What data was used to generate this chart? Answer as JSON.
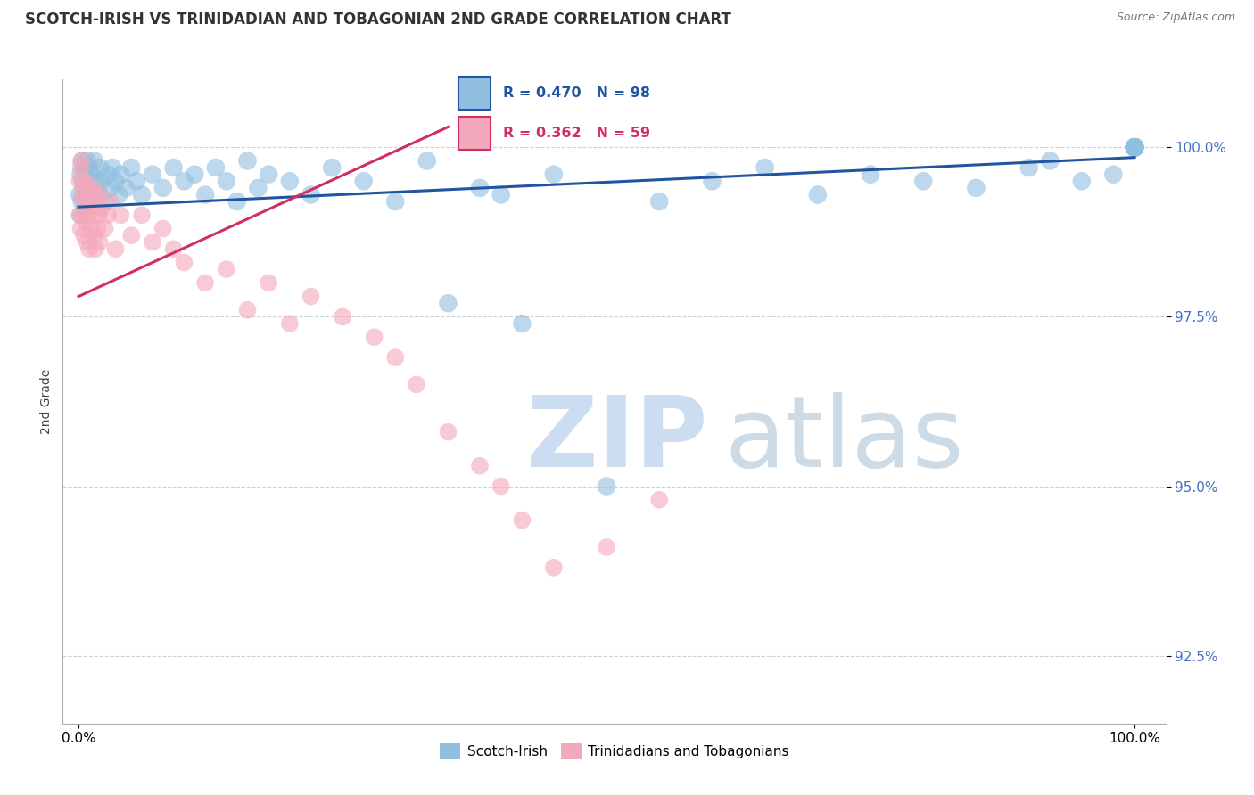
{
  "title": "SCOTCH-IRISH VS TRINIDADIAN AND TOBAGONIAN 2ND GRADE CORRELATION CHART",
  "source": "Source: ZipAtlas.com",
  "ylabel": "2nd Grade",
  "xlim": [
    -1.5,
    103
  ],
  "ylim": [
    91.5,
    101.0
  ],
  "yticks": [
    92.5,
    95.0,
    97.5,
    100.0
  ],
  "xtick_vals": [
    0.0,
    100.0
  ],
  "xtick_labels": [
    "0.0%",
    "100.0%"
  ],
  "blue_R": 0.47,
  "blue_N": 98,
  "pink_R": 0.362,
  "pink_N": 59,
  "blue_color": "#91bfe0",
  "pink_color": "#f4a8bb",
  "blue_line_color": "#2255a0",
  "pink_line_color": "#d03060",
  "background_color": "#ffffff",
  "grid_color": "#d0d0d0",
  "axis_label_color": "#4472c4",
  "title_color": "#333333",
  "source_color": "#777777",
  "watermark_zip_color": "#c5d8ef",
  "watermark_atlas_color": "#b8ccde",
  "legend_border_color": "#aaaaaa",
  "blue_trend_x0": 0,
  "blue_trend_x1": 100,
  "blue_trend_y0": 99.12,
  "blue_trend_y1": 99.85,
  "pink_trend_x0": 0,
  "pink_trend_x1": 35,
  "pink_trend_y0": 97.8,
  "pink_trend_y1": 100.3,
  "blue_scatter_x": [
    0.1,
    0.2,
    0.2,
    0.3,
    0.3,
    0.4,
    0.5,
    0.5,
    0.6,
    0.7,
    0.8,
    0.8,
    0.9,
    1.0,
    1.0,
    1.1,
    1.2,
    1.3,
    1.4,
    1.5,
    1.6,
    1.8,
    2.0,
    2.0,
    2.2,
    2.5,
    2.8,
    3.0,
    3.2,
    3.5,
    3.8,
    4.0,
    4.5,
    5.0,
    5.5,
    6.0,
    7.0,
    8.0,
    9.0,
    10.0,
    11.0,
    12.0,
    13.0,
    14.0,
    15.0,
    16.0,
    17.0,
    18.0,
    20.0,
    22.0,
    24.0,
    27.0,
    30.0,
    33.0,
    35.0,
    38.0,
    40.0,
    42.0,
    45.0,
    50.0,
    55.0,
    60.0,
    65.0,
    70.0,
    75.0,
    80.0,
    85.0,
    90.0,
    92.0,
    95.0,
    98.0,
    100.0,
    100.0,
    100.0,
    100.0,
    100.0,
    100.0,
    100.0,
    100.0,
    100.0,
    100.0,
    100.0,
    100.0,
    100.0,
    100.0,
    100.0,
    100.0,
    100.0,
    100.0,
    100.0,
    100.0,
    100.0,
    100.0,
    100.0,
    100.0,
    100.0,
    100.0,
    100.0
  ],
  "blue_scatter_y": [
    99.3,
    99.6,
    99.0,
    99.8,
    99.2,
    99.5,
    99.4,
    99.7,
    99.1,
    99.6,
    99.3,
    99.8,
    99.2,
    99.7,
    99.4,
    99.5,
    99.3,
    99.6,
    99.2,
    99.8,
    99.4,
    99.5,
    99.3,
    99.7,
    99.5,
    99.2,
    99.6,
    99.4,
    99.7,
    99.5,
    99.3,
    99.6,
    99.4,
    99.7,
    99.5,
    99.3,
    99.6,
    99.4,
    99.7,
    99.5,
    99.6,
    99.3,
    99.7,
    99.5,
    99.2,
    99.8,
    99.4,
    99.6,
    99.5,
    99.3,
    99.7,
    99.5,
    99.2,
    99.8,
    97.7,
    99.4,
    99.3,
    97.4,
    99.6,
    95.0,
    99.2,
    99.5,
    99.7,
    99.3,
    99.6,
    99.5,
    99.4,
    99.7,
    99.8,
    99.5,
    99.6,
    100.0,
    100.0,
    100.0,
    100.0,
    100.0,
    100.0,
    100.0,
    100.0,
    100.0,
    100.0,
    100.0,
    100.0,
    100.0,
    100.0,
    100.0,
    100.0,
    100.0,
    100.0,
    100.0,
    100.0,
    100.0,
    100.0,
    100.0,
    100.0,
    100.0,
    100.0,
    100.0
  ],
  "pink_scatter_x": [
    0.1,
    0.1,
    0.2,
    0.2,
    0.3,
    0.3,
    0.4,
    0.4,
    0.5,
    0.5,
    0.6,
    0.7,
    0.7,
    0.8,
    0.8,
    0.9,
    1.0,
    1.0,
    1.1,
    1.2,
    1.3,
    1.4,
    1.5,
    1.5,
    1.6,
    1.7,
    1.8,
    1.9,
    2.0,
    2.0,
    2.2,
    2.5,
    2.8,
    3.0,
    3.5,
    4.0,
    5.0,
    6.0,
    7.0,
    8.0,
    9.0,
    10.0,
    12.0,
    14.0,
    16.0,
    18.0,
    20.0,
    22.0,
    25.0,
    28.0,
    30.0,
    32.0,
    35.0,
    38.0,
    40.0,
    42.0,
    45.0,
    50.0,
    55.0
  ],
  "pink_scatter_y": [
    99.5,
    99.0,
    99.7,
    98.8,
    99.3,
    99.8,
    99.0,
    99.5,
    98.7,
    99.2,
    99.5,
    98.9,
    99.4,
    99.2,
    98.6,
    99.0,
    99.3,
    98.5,
    99.1,
    98.8,
    99.4,
    99.0,
    98.7,
    99.3,
    98.5,
    99.2,
    98.8,
    99.0,
    99.3,
    98.6,
    99.1,
    98.8,
    99.0,
    99.2,
    98.5,
    99.0,
    98.7,
    99.0,
    98.6,
    98.8,
    98.5,
    98.3,
    98.0,
    98.2,
    97.6,
    98.0,
    97.4,
    97.8,
    97.5,
    97.2,
    96.9,
    96.5,
    95.8,
    95.3,
    95.0,
    94.5,
    93.8,
    94.1,
    94.8
  ]
}
